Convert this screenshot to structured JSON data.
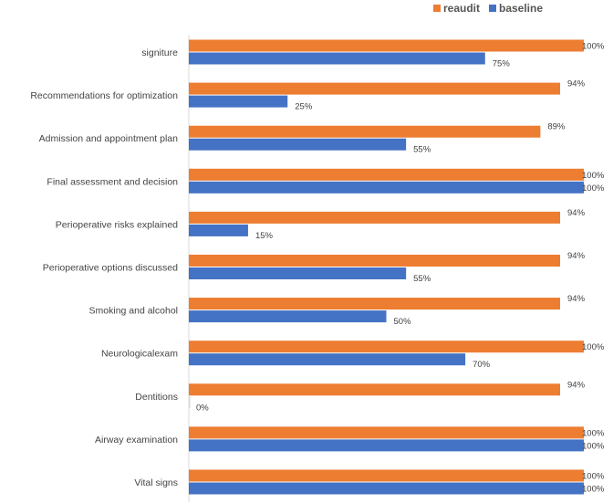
{
  "chart_data": {
    "type": "bar",
    "orientation": "horizontal",
    "title": "",
    "xlabel": "",
    "ylabel": "",
    "xlim": [
      0,
      100
    ],
    "grid": false,
    "legend_position": "top-right",
    "categories": [
      "signiture",
      "Recommendations for optimization",
      "Admission and appointment plan",
      "Final assessment and decision",
      "Perioperative risks explained",
      "Perioperative options discussed",
      "Smoking and alcohol",
      "Neurologicalexam",
      "Dentitions",
      "Airway examination",
      "Vital signs"
    ],
    "series": [
      {
        "name": "reaudit",
        "color": "#ED7D31",
        "values": [
          100,
          94,
          89,
          100,
          94,
          94,
          94,
          100,
          94,
          100,
          100
        ],
        "labels": [
          "100%",
          "94%",
          "89%",
          "100%",
          "94%",
          "94%",
          "94%",
          "100%",
          "94%",
          "100%",
          "100%"
        ]
      },
      {
        "name": "baseline",
        "color": "#4472C4",
        "values": [
          75,
          25,
          55,
          100,
          15,
          55,
          50,
          70,
          0,
          100,
          100
        ],
        "labels": [
          "75%",
          "25%",
          "55%",
          "100%",
          "15%",
          "55%",
          "50%",
          "70%",
          "0%",
          "100%",
          "100%"
        ]
      }
    ]
  }
}
